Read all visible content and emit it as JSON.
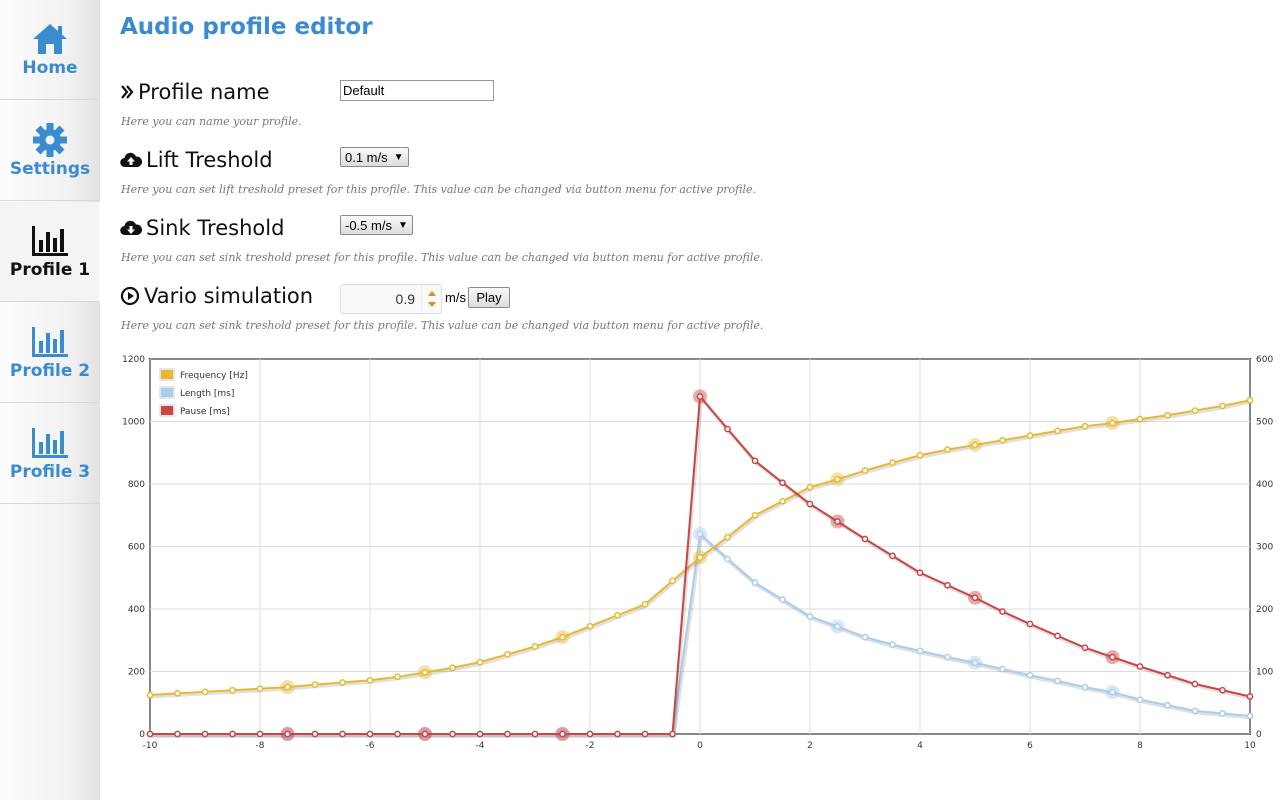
{
  "sidebar": {
    "items": [
      {
        "label": "Home",
        "icon": "home-icon",
        "active": false
      },
      {
        "label": "Settings",
        "icon": "gear-icon",
        "active": false
      },
      {
        "label": "Profile 1",
        "icon": "bar-chart-icon",
        "active": true
      },
      {
        "label": "Profile 2",
        "icon": "bar-chart-icon",
        "active": false
      },
      {
        "label": "Profile 3",
        "icon": "bar-chart-icon",
        "active": false
      }
    ],
    "accent": "#3a8bd0"
  },
  "main": {
    "title": "Audio profile editor",
    "profile_name": {
      "label": "Profile name",
      "value": "Default",
      "help": "Here you can name your profile."
    },
    "lift": {
      "label": "Lift Treshold",
      "selected": "0.1 m/s",
      "help": "Here you can set lift treshold preset for this profile. This value can be changed via button menu for active profile."
    },
    "sink": {
      "label": "Sink Treshold",
      "selected": "-0.5 m/s",
      "help": "Here you can set sink treshold preset for this profile. This value can be changed via button menu for active profile."
    },
    "vario": {
      "label": "Vario simulation",
      "value": "0.9",
      "unit": "m/s",
      "play_label": "Play",
      "help": "Here you can set sink treshold preset for this profile. This value can be changed via button menu for active profile."
    }
  },
  "chart_data": {
    "type": "line",
    "x": [
      -10,
      -9.5,
      -9,
      -8.5,
      -8,
      -7.5,
      -7,
      -6.5,
      -6,
      -5.5,
      -5,
      -4.5,
      -4,
      -3.5,
      -3,
      -2.5,
      -2,
      -1.5,
      -1,
      -0.5,
      0,
      0.5,
      1,
      1.5,
      2,
      2.5,
      3,
      3.5,
      4,
      4.5,
      5,
      5.5,
      6,
      6.5,
      7,
      7.5,
      8,
      8.5,
      9,
      9.5,
      10
    ],
    "xlim": [
      -10,
      10
    ],
    "xticks": [
      -10,
      -8,
      -6,
      -4,
      -2,
      0,
      2,
      4,
      6,
      8,
      10
    ],
    "ylim_left": [
      0,
      1200
    ],
    "yticks_left": [
      0,
      200,
      400,
      600,
      800,
      1000,
      1200
    ],
    "ylim_right": [
      0,
      600
    ],
    "yticks_right": [
      0,
      100,
      200,
      300,
      400,
      500,
      600
    ],
    "grid": true,
    "legend_position": "top-left",
    "highlight_x": [
      -7.5,
      -5,
      -2.5,
      0,
      2.5,
      5,
      7.5
    ],
    "series": [
      {
        "name": "Frequency [Hz]",
        "axis": "left",
        "color": "#e8b930",
        "values": [
          125,
          130,
          135,
          140,
          145,
          150,
          158,
          165,
          172,
          183,
          197,
          212,
          230,
          255,
          280,
          310,
          345,
          380,
          415,
          490,
          565,
          630,
          700,
          745,
          790,
          815,
          843,
          868,
          892,
          910,
          925,
          940,
          955,
          970,
          985,
          995,
          1008,
          1020,
          1035,
          1050,
          1068
        ]
      },
      {
        "name": "Length [ms]",
        "axis": "right",
        "color": "#a9cdef",
        "values": [
          0,
          0,
          0,
          0,
          0,
          0,
          0,
          0,
          0,
          0,
          0,
          0,
          0,
          0,
          0,
          0,
          0,
          0,
          0,
          0,
          320,
          280,
          242,
          215,
          188,
          172,
          155,
          143,
          133,
          123,
          114,
          104,
          94,
          85,
          75,
          67,
          55,
          46,
          37,
          33,
          29
        ]
      },
      {
        "name": "Pause [ms]",
        "axis": "right",
        "color": "#cc4444",
        "values": [
          0,
          0,
          0,
          0,
          0,
          0,
          0,
          0,
          0,
          0,
          0,
          0,
          0,
          0,
          0,
          0,
          0,
          0,
          0,
          0,
          540,
          488,
          437,
          402,
          368,
          340,
          312,
          285,
          258,
          238,
          218,
          196,
          176,
          157,
          138,
          123,
          108,
          94,
          80,
          70,
          60
        ]
      }
    ]
  }
}
